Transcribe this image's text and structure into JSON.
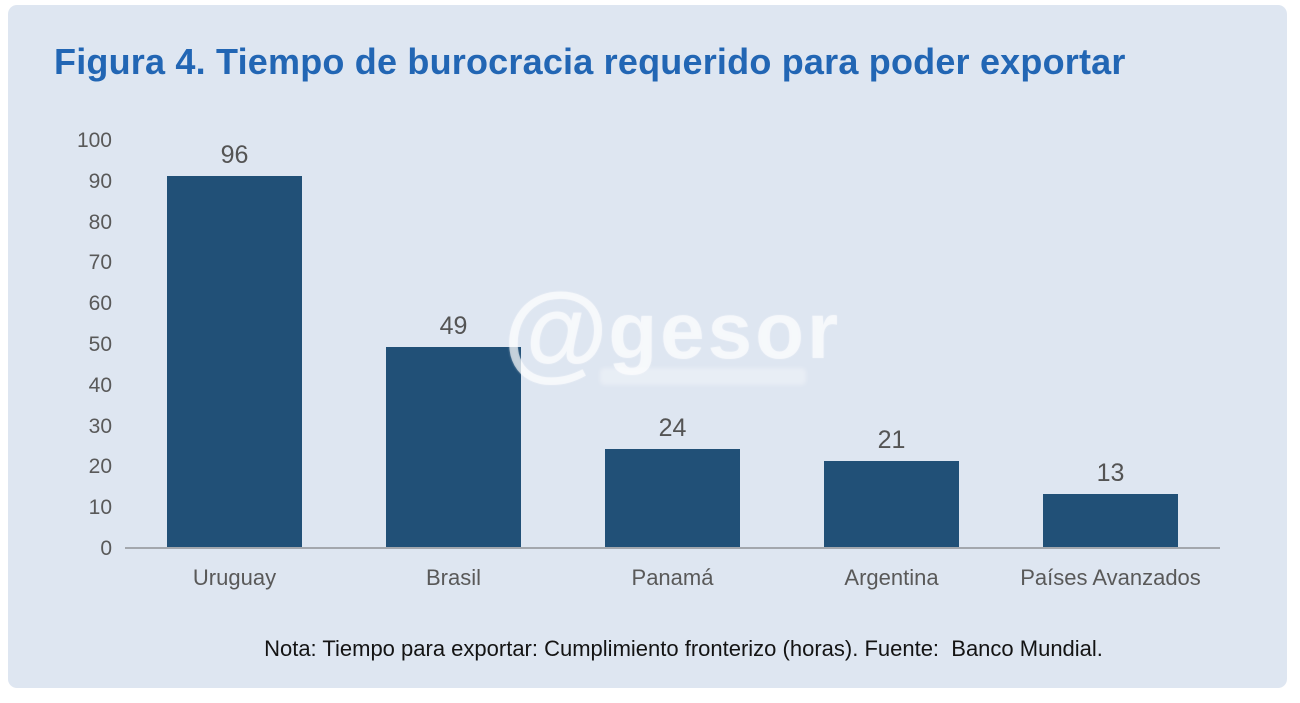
{
  "figure": {
    "title": "Figura 4. Tiempo de burocracia requerido para poder exportar",
    "note": "Nota: Tiempo para exportar: Cumplimiento fronterizo (horas). Fuente:  Banco Mundial.",
    "watermark": {
      "at_symbol": "@",
      "name": "gesor"
    }
  },
  "colors": {
    "panel_background": "#dee6f1",
    "bar": "#215077",
    "title": "#2266b4",
    "axis_labels": "#595959",
    "axis_line": "#a3a7ad",
    "note_text": "#141414",
    "watermark": "rgba(255,255,255,0.6)"
  },
  "chart_data": {
    "type": "bar",
    "title": "Figura 4. Tiempo de burocracia requerido para poder exportar",
    "categories": [
      "Uruguay",
      "Brasil",
      "Panamá",
      "Argentina",
      "Países Avanzados"
    ],
    "values": [
      96,
      49,
      24,
      21,
      13
    ],
    "data_labels": [
      96,
      49,
      24,
      21,
      13
    ],
    "xlabel": "",
    "ylabel": "",
    "units": "horas",
    "ylim": [
      0,
      100
    ],
    "yticks": [
      0,
      10,
      20,
      30,
      40,
      50,
      60,
      70,
      80,
      90,
      100
    ],
    "grid": false,
    "legend": false,
    "annotation": "Nota: Tiempo para exportar: Cumplimiento fronterizo (horas). Fuente:  Banco Mundial."
  }
}
